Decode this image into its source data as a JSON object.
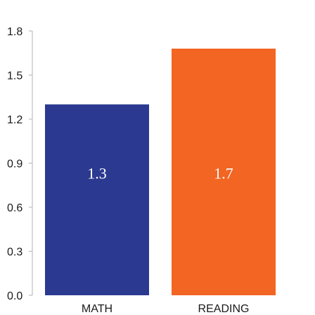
{
  "chart_data": {
    "type": "bar",
    "title": "",
    "xlabel": "",
    "ylabel": "",
    "categories": [
      "MATH",
      "READING"
    ],
    "values": [
      1.3,
      1.68
    ],
    "data_labels": [
      "1.3",
      "1.7"
    ],
    "colors": [
      "#2b3990",
      "#f26522"
    ],
    "ylim": [
      0,
      1.8
    ],
    "yticks": [
      0.0,
      0.3,
      0.6,
      0.9,
      1.2,
      1.5,
      1.8
    ],
    "ytick_labels": [
      "0.0",
      "0.3",
      "0.6",
      "0.9",
      "1.2",
      "1.5",
      "1.8"
    ],
    "grid": false,
    "legend": "none"
  }
}
